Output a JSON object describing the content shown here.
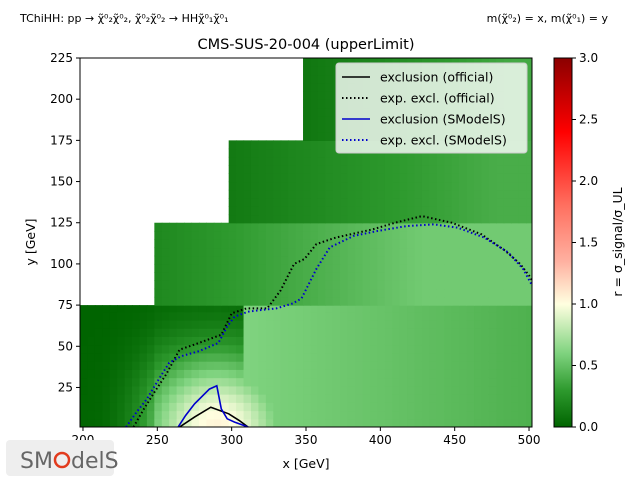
{
  "chart_data": {
    "type": "heatmap",
    "title": "CMS-SUS-20-004 (upperLimit)",
    "process": "TChiHH: pp → χ̃⁰₂χ̃⁰₂, χ̃⁰₂χ̃⁰₂ → HHχ̃⁰₁χ̃⁰₁",
    "mass_convention": "m(χ̃⁰₂) = x, m(χ̃⁰₁) = y",
    "xlabel": "x [GeV]",
    "ylabel": "y [GeV]",
    "colorbar_label": "r = σ_signal/σ_UL",
    "xlim": [
      198,
      502
    ],
    "ylim": [
      1,
      225
    ],
    "x_ticks": [
      200,
      250,
      300,
      350,
      400,
      450,
      500
    ],
    "y_ticks": [
      25,
      50,
      75,
      100,
      125,
      150,
      175,
      200,
      225
    ],
    "colorbar_range": [
      0,
      3
    ],
    "colorbar_ticks": [
      "0.0",
      "0.5",
      "1.0",
      "1.5",
      "2.0",
      "2.5",
      "3.0"
    ],
    "legend_position": "top-right",
    "grid": false,
    "colors": {
      "official": "#000000",
      "smodels": "#0000cc"
    },
    "coverage": [
      {
        "x_from": 198,
        "x_to": 502,
        "y_from": 1,
        "y_to": 75
      },
      {
        "x_from": 248,
        "x_to": 502,
        "y_from": 75,
        "y_to": 125
      },
      {
        "x_from": 298,
        "x_to": 502,
        "y_from": 125,
        "y_to": 175
      },
      {
        "x_from": 348,
        "x_to": 502,
        "y_from": 175,
        "y_to": 225
      }
    ],
    "series": [
      {
        "name": "exclusion (official)",
        "style": "solid",
        "color": "#000000",
        "points": [
          [
            265,
            1
          ],
          [
            275,
            7
          ],
          [
            286,
            13
          ],
          [
            298,
            9
          ],
          [
            305,
            5
          ],
          [
            311,
            1
          ]
        ]
      },
      {
        "name": "exp. excl. (official)",
        "style": "dotted",
        "color": "#000000",
        "points": [
          [
            234,
            1
          ],
          [
            241,
            12
          ],
          [
            248,
            22
          ],
          [
            256,
            33
          ],
          [
            265,
            48
          ],
          [
            275,
            51
          ],
          [
            287,
            55
          ],
          [
            293,
            57
          ],
          [
            300,
            70
          ],
          [
            310,
            73
          ],
          [
            324,
            73
          ],
          [
            333,
            84
          ],
          [
            338,
            93
          ],
          [
            342,
            100
          ],
          [
            349,
            103
          ],
          [
            357,
            112
          ],
          [
            370,
            116
          ],
          [
            380,
            118
          ],
          [
            395,
            121
          ],
          [
            410,
            125
          ],
          [
            428,
            129
          ],
          [
            448,
            125
          ],
          [
            468,
            118
          ],
          [
            484,
            108
          ],
          [
            494,
            100
          ],
          [
            500,
            93
          ],
          [
            502,
            90
          ]
        ]
      },
      {
        "name": "exclusion (SModelS)",
        "style": "solid",
        "color": "#0000cc",
        "points": [
          [
            264,
            1
          ],
          [
            269,
            8
          ],
          [
            275,
            15
          ],
          [
            285,
            24
          ],
          [
            290,
            26
          ],
          [
            293,
            12
          ],
          [
            297,
            6
          ],
          [
            302,
            4
          ],
          [
            308,
            2
          ],
          [
            311,
            1
          ]
        ]
      },
      {
        "name": "exp. excl. (SModelS)",
        "style": "dotted",
        "color": "#0000cc",
        "points": [
          [
            229,
            1
          ],
          [
            236,
            10
          ],
          [
            243,
            18
          ],
          [
            251,
            30
          ],
          [
            258,
            40
          ],
          [
            266,
            44
          ],
          [
            278,
            47
          ],
          [
            291,
            52
          ],
          [
            297,
            62
          ],
          [
            302,
            68
          ],
          [
            311,
            71
          ],
          [
            320,
            72
          ],
          [
            330,
            73
          ],
          [
            341,
            76
          ],
          [
            347,
            79
          ],
          [
            357,
            97
          ],
          [
            366,
            110
          ],
          [
            382,
            117
          ],
          [
            398,
            120
          ],
          [
            418,
            123
          ],
          [
            436,
            124
          ],
          [
            452,
            122
          ],
          [
            470,
            116
          ],
          [
            486,
            107
          ],
          [
            496,
            97
          ],
          [
            502,
            87
          ]
        ]
      }
    ]
  }
}
